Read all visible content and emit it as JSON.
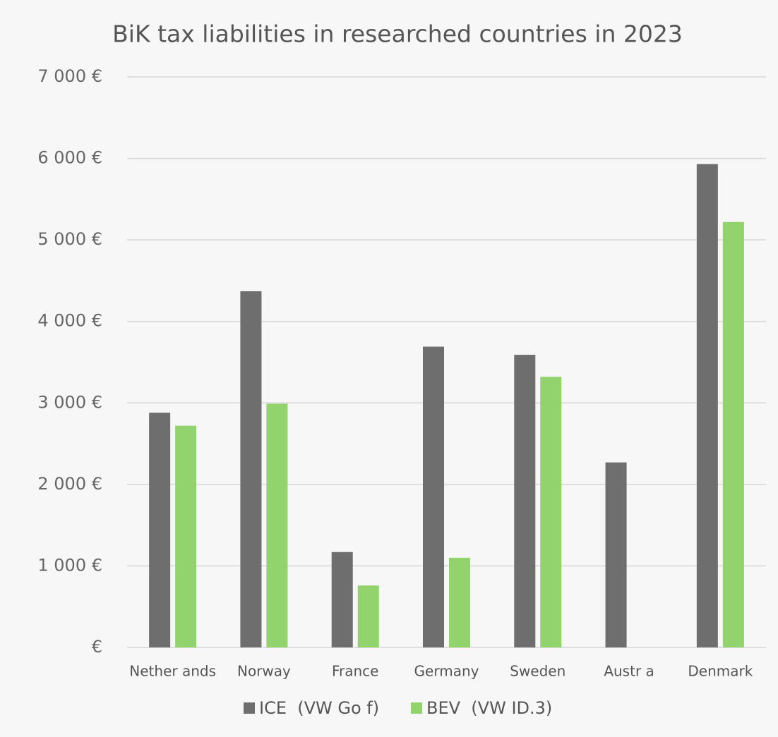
{
  "chart_data": {
    "type": "bar",
    "title": "BiK tax liabilities in researched countries in 2023",
    "categories": [
      "Nether ands",
      "Norway",
      "France",
      "Germany",
      "Sweden",
      "Austr a",
      "Denmark"
    ],
    "series": [
      {
        "name": "ICE  (VW Go f)",
        "color": "#6e6e6e",
        "values": [
          2880,
          4370,
          1170,
          3690,
          3590,
          2270,
          5930
        ]
      },
      {
        "name": "BEV  (VW ID.3)",
        "color": "#92d36e",
        "values": [
          2720,
          2990,
          760,
          1100,
          3320,
          0,
          5220
        ]
      }
    ],
    "ylim": [
      0,
      7000
    ],
    "yticks": [
      {
        "value": 0,
        "label": "€"
      },
      {
        "value": 1000,
        "label": "1 000 €"
      },
      {
        "value": 2000,
        "label": "2 000 €"
      },
      {
        "value": 3000,
        "label": "3 000 €"
      },
      {
        "value": 4000,
        "label": "4 000 €"
      },
      {
        "value": 5000,
        "label": "5 000 €"
      },
      {
        "value": 6000,
        "label": "6 000 €"
      },
      {
        "value": 7000,
        "label": "7 000 €"
      }
    ],
    "grid": true
  }
}
